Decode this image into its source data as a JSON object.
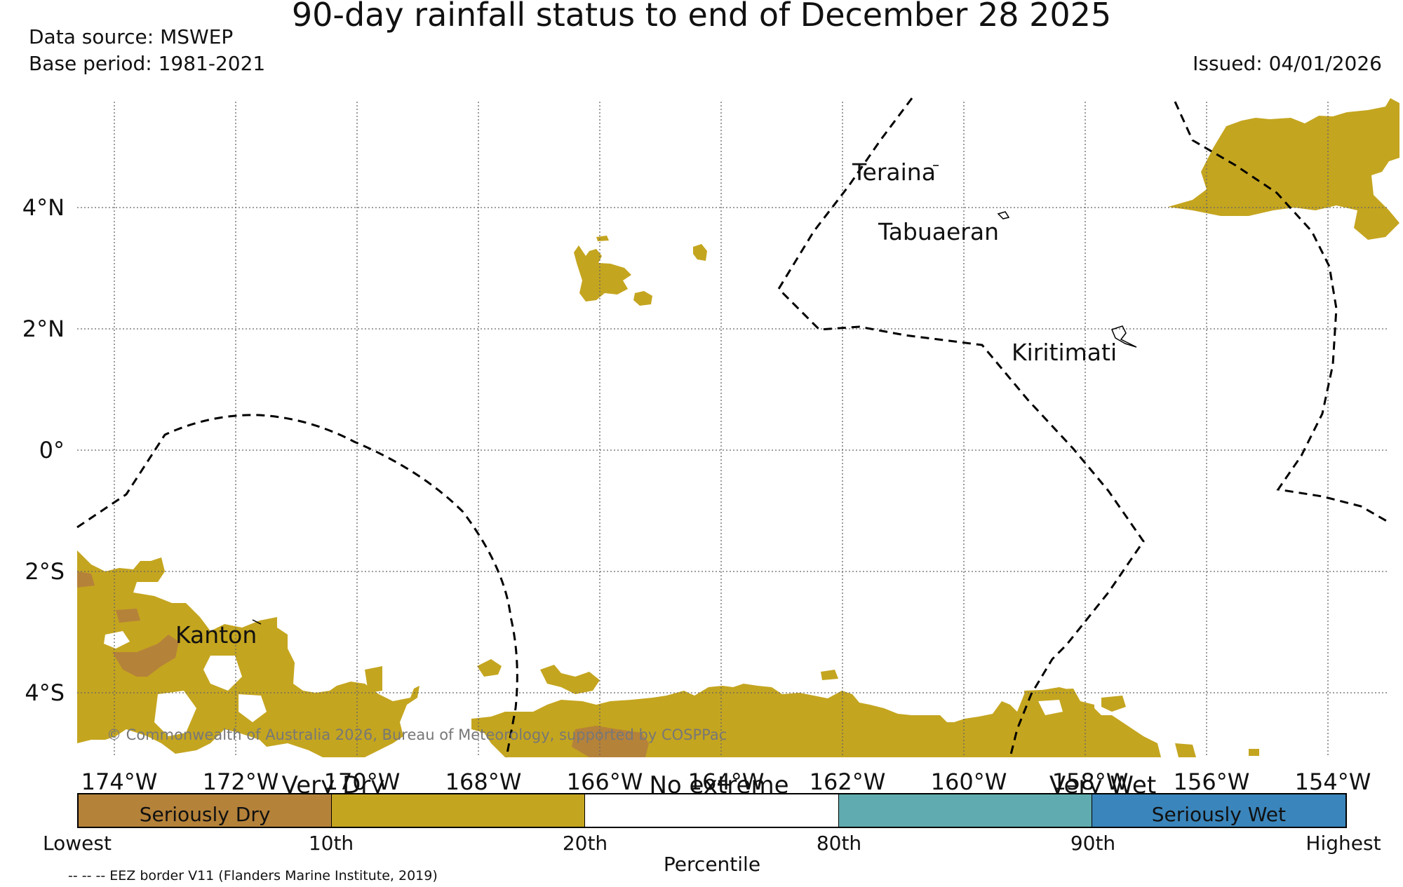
{
  "header": {
    "title": "90-day rainfall status to end of December 28 2025",
    "data_source": "Data source: MSWEP",
    "base_period": "Base period: 1981-2021",
    "issued": "Issued: 04/01/2026"
  },
  "map": {
    "lon_labels": [
      "174°W",
      "172°W",
      "170°W",
      "168°W",
      "166°W",
      "164°W",
      "162°W",
      "160°W",
      "158°W",
      "156°W",
      "154°W"
    ],
    "lat_labels": [
      "4°N",
      "2°N",
      "0°",
      "2°S",
      "4°S"
    ],
    "places": [
      "Teraina",
      "Tabuaeran",
      "Kiritimati",
      "Kanton"
    ],
    "copyright": "© Commonwealth of Australia 2026, Bureau of Meteorology, supported by COSPPac",
    "colors": {
      "seriously_dry": "#b5823a",
      "very_dry": "#c4a51f",
      "no_extreme": "#ffffff",
      "very_wet": "#5fabaf",
      "seriously_wet": "#3a85bb"
    }
  },
  "legend": {
    "groups": [
      "Very Dry",
      "No extreme",
      "Very Wet"
    ],
    "segments": [
      "Seriously Dry",
      "",
      "",
      "",
      "Seriously Wet"
    ],
    "ticks": [
      "Lowest",
      "10th",
      "20th",
      "80th",
      "90th",
      "Highest"
    ],
    "axis_label": "Percentile",
    "eez_note": "-- -- -- EEZ border V11 (Flanders Marine Institute, 2019)"
  }
}
